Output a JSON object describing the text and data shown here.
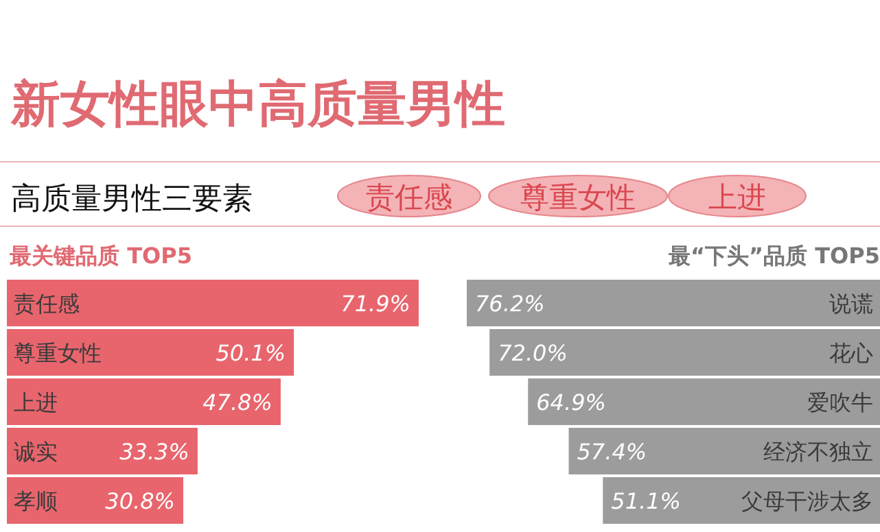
{
  "chart_data": [
    {
      "type": "other",
      "title": "新女性眼中高质量男性",
      "subtitle": "高质量男性三要素",
      "annotations": [
        "责任感",
        "尊重女性",
        "上进"
      ]
    },
    {
      "type": "bar",
      "orientation": "horizontal",
      "title": "最关键品质 TOP5",
      "categories": [
        "责任感",
        "尊重女性",
        "上进",
        "诚实",
        "孝顺"
      ],
      "color": "#e8656d",
      "values": [
        71.9,
        50.1,
        47.8,
        33.3,
        30.8
      ],
      "value_labels": [
        "71.9%",
        "50.1%",
        "47.8%",
        "33.3%",
        "30.8%"
      ]
    },
    {
      "type": "bar",
      "orientation": "horizontal",
      "title": "最“下头”品质 TOP5",
      "categories": [
        "说谎",
        "花心",
        "爱吹牛",
        "经济不独立",
        "父母干涉太多"
      ],
      "color": "#9c9c9c",
      "values": [
        76.2,
        72.0,
        64.9,
        57.4,
        51.1
      ],
      "value_labels": [
        "76.2%",
        "72.0%",
        "64.9%",
        "57.4%",
        "51.1%"
      ]
    }
  ]
}
